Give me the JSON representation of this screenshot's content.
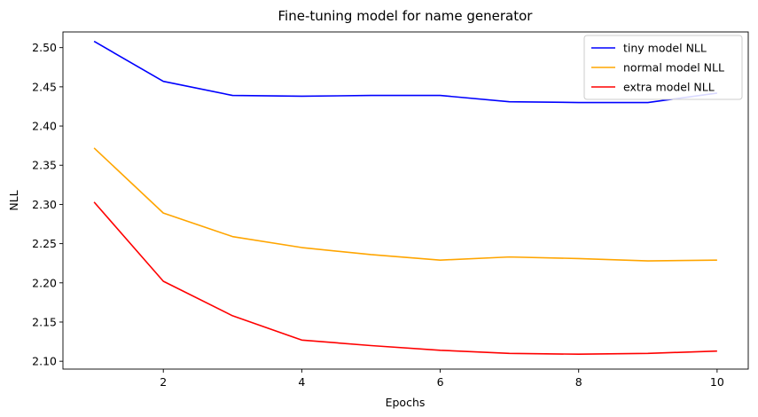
{
  "chart_data": {
    "type": "line",
    "title": "Fine-tuning model for name generator",
    "xlabel": "Epochs",
    "ylabel": "NLL",
    "x": [
      1,
      2,
      3,
      4,
      5,
      6,
      7,
      8,
      9,
      10
    ],
    "xlim": [
      0.55,
      10.45
    ],
    "ylim": [
      2.09,
      2.52
    ],
    "xticks": [
      2,
      4,
      6,
      8,
      10
    ],
    "yticks": [
      2.1,
      2.15,
      2.2,
      2.25,
      2.3,
      2.35,
      2.4,
      2.45,
      2.5
    ],
    "grid": false,
    "legend_position": "top-right",
    "series": [
      {
        "name": "tiny model NLL",
        "color": "#0000ff",
        "values": [
          2.508,
          2.457,
          2.439,
          2.438,
          2.439,
          2.439,
          2.431,
          2.43,
          2.43,
          2.442
        ]
      },
      {
        "name": "normal model NLL",
        "color": "#ffa500",
        "values": [
          2.372,
          2.289,
          2.259,
          2.245,
          2.236,
          2.229,
          2.233,
          2.231,
          2.228,
          2.229
        ]
      },
      {
        "name": "extra model NLL",
        "color": "#ff0000",
        "values": [
          2.303,
          2.202,
          2.158,
          2.127,
          2.12,
          2.114,
          2.11,
          2.109,
          2.11,
          2.113
        ]
      }
    ]
  }
}
